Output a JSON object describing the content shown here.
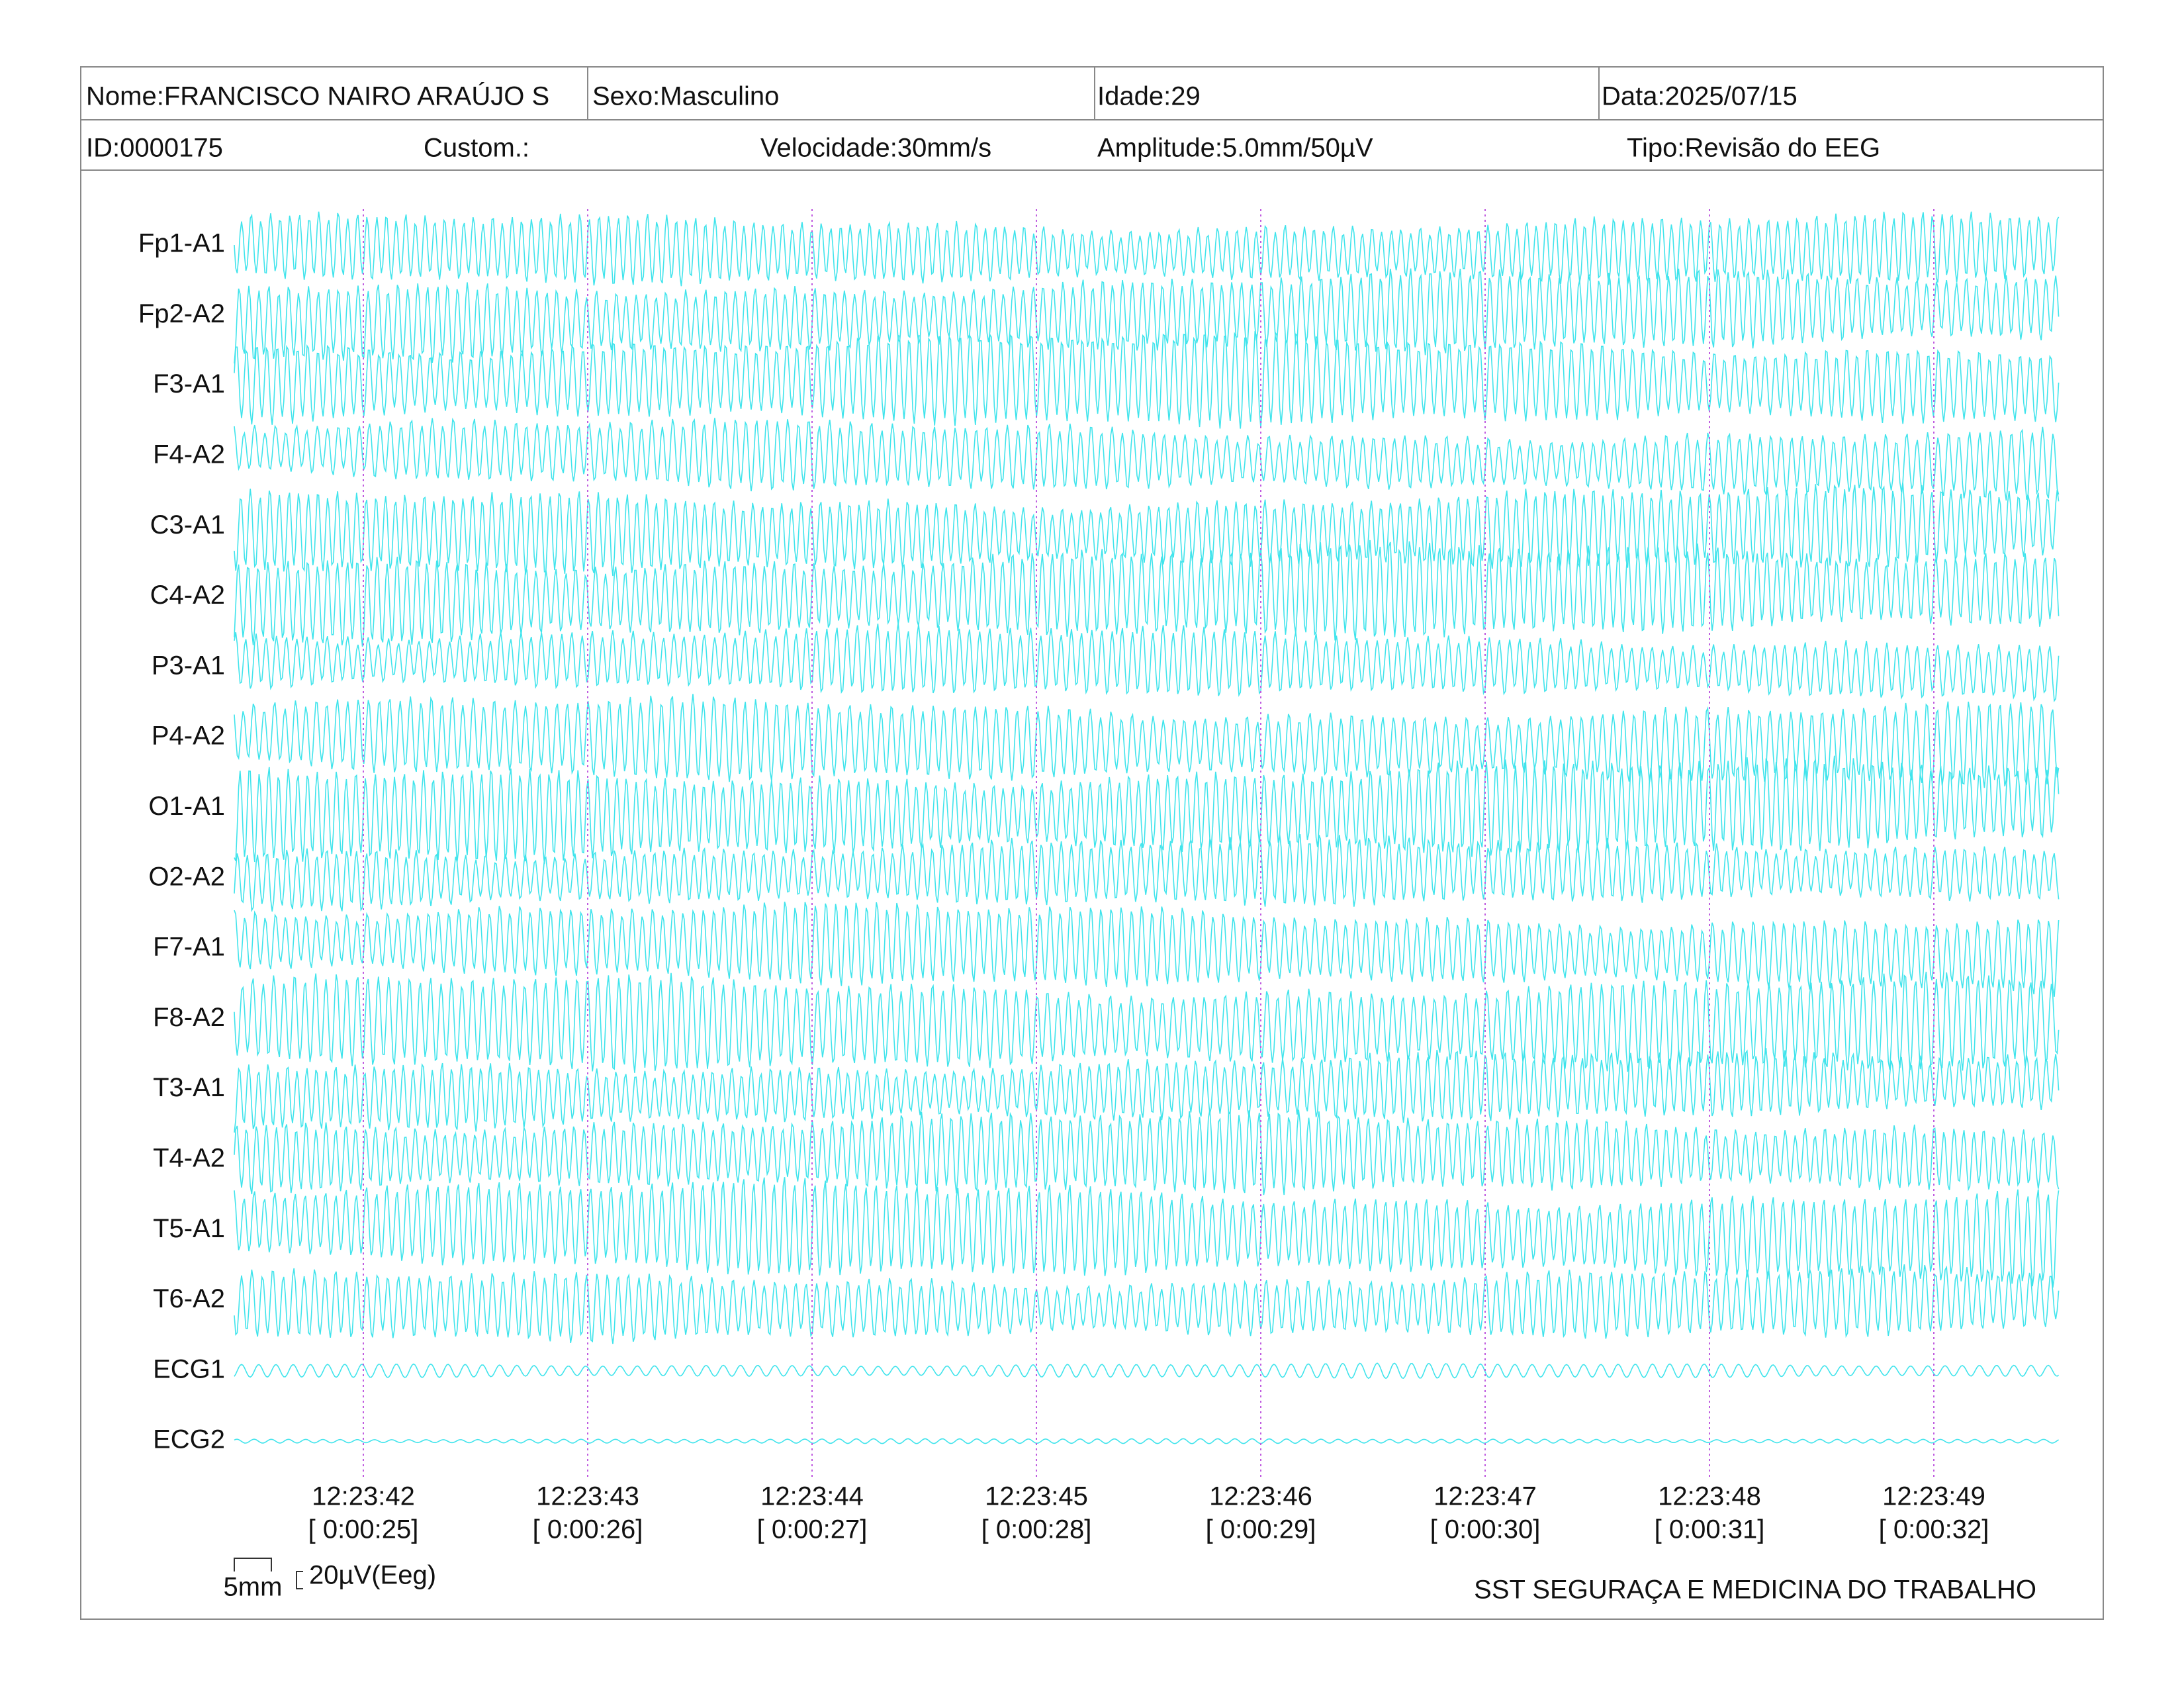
{
  "header": {
    "row1": [
      "Nome:FRANCISCO NAIRO ARAÚJO S",
      "Sexo:Masculino",
      "Idade:29",
      "Data:2025/07/15"
    ],
    "row2": [
      "ID:0000175",
      "Custom.:",
      "Velocidade:30mm/s",
      "Amplitude:5.0mm/50µV",
      "Tipo:Revisão do EEG"
    ]
  },
  "channels": [
    "Fp1-A1",
    "Fp2-A2",
    "F3-A1",
    "F4-A2",
    "C3-A1",
    "C4-A2",
    "P3-A1",
    "P4-A2",
    "O1-A1",
    "O2-A2",
    "F7-A1",
    "F8-A2",
    "T3-A1",
    "T4-A2",
    "T5-A1",
    "T6-A2",
    "ECG1",
    "ECG2"
  ],
  "time_markers": [
    {
      "time": "12:23:42",
      "elapsed": "[ 0:00:25]"
    },
    {
      "time": "12:23:43",
      "elapsed": "[ 0:00:26]"
    },
    {
      "time": "12:23:44",
      "elapsed": "[ 0:00:27]"
    },
    {
      "time": "12:23:45",
      "elapsed": "[ 0:00:28]"
    },
    {
      "time": "12:23:46",
      "elapsed": "[ 0:00:29]"
    },
    {
      "time": "12:23:47",
      "elapsed": "[ 0:00:30]"
    },
    {
      "time": "12:23:48",
      "elapsed": "[ 0:00:31]"
    },
    {
      "time": "12:23:49",
      "elapsed": "[ 0:00:32]"
    }
  ],
  "scale": {
    "time": "5mm",
    "amplitude": "20µV(Eeg)"
  },
  "footer": "SST SEGURAÇA E MEDICINA DO TRABALHO"
}
